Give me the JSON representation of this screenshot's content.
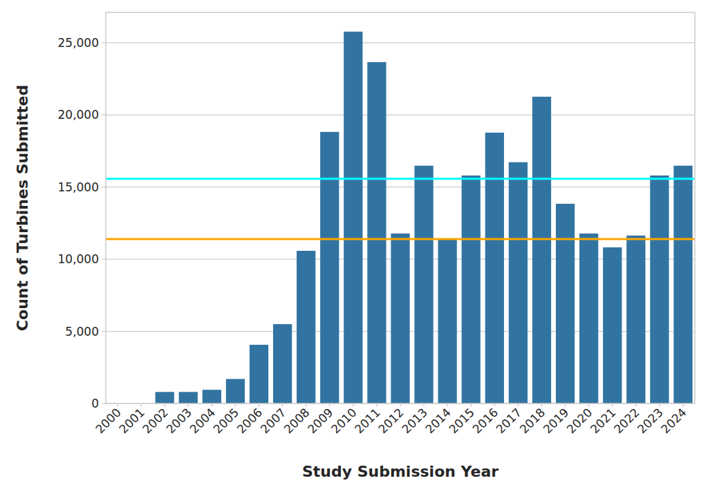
{
  "chart_data": {
    "type": "bar",
    "x_label": "Study Submission Year",
    "y_label": "Count of Turbines Submitted",
    "categories": [
      "2000",
      "2001",
      "2002",
      "2003",
      "2004",
      "2005",
      "2006",
      "2007",
      "2008",
      "2009",
      "2010",
      "2011",
      "2012",
      "2013",
      "2014",
      "2015",
      "2016",
      "2017",
      "2018",
      "2019",
      "2020",
      "2021",
      "2022",
      "2023",
      "2024"
    ],
    "values": [
      0,
      0,
      800,
      800,
      950,
      1700,
      4070,
      5500,
      10580,
      18820,
      25770,
      23660,
      11780,
      16480,
      11350,
      15800,
      18770,
      16720,
      21260,
      13840,
      11780,
      10820,
      11640,
      15800,
      16480
    ],
    "color": "#3274a1",
    "ylim": [
      0,
      27100
    ],
    "yticks": [
      0,
      {
        "value": 5000,
        "label": "5,000"
      },
      {
        "value": 10000,
        "label": "10,000"
      },
      {
        "value": 15000,
        "label": "15,000"
      },
      {
        "value": 20000,
        "label": "20,000"
      },
      {
        "value": 25000,
        "label": "25,000"
      }
    ],
    "grid": true,
    "reference_lines": [
      {
        "value": 15570,
        "color": "#00ffff"
      },
      {
        "value": 11400,
        "color": "#ffa500"
      }
    ]
  }
}
